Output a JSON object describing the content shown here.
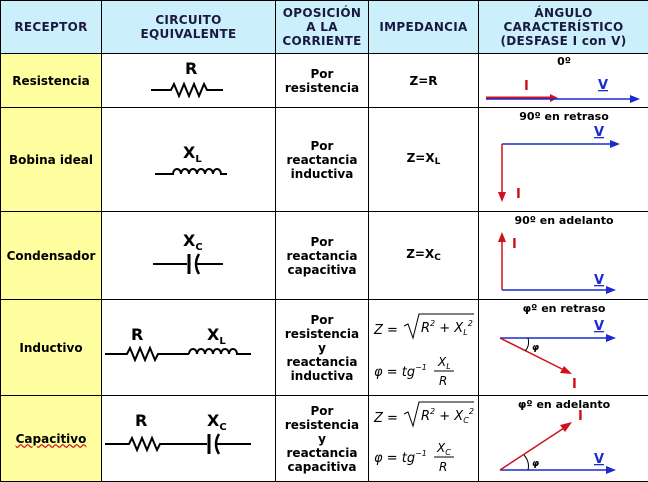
{
  "headers": {
    "receptor": "RECEPTOR",
    "circuito": "CIRCUITO\nEQUIVALENTE",
    "oposicion": "OPOSICIÓN\nA LA\nCORRIENTE",
    "impedancia": "IMPEDANCIA",
    "angulo": "ÁNGULO\nCARACTERÍSTICO\n(DESFASE I con V)"
  },
  "rows": [
    {
      "receptor": "Resistencia",
      "components": [
        "R"
      ],
      "oposicion": "Por\nresistencia",
      "impedancia": "Z=R",
      "angle_title": "0º"
    },
    {
      "receptor": "Bobina ideal",
      "components": [
        "XL"
      ],
      "oposicion": "Por\nreactancia\ninductiva",
      "impedancia": "Z=XL",
      "angle_title": "90º en retraso"
    },
    {
      "receptor": "Condensador",
      "components": [
        "XC"
      ],
      "oposicion": "Por\nreactancia\ncapacitiva",
      "impedancia": "Z=XC",
      "angle_title": "90º en adelanto"
    },
    {
      "receptor": "Inductivo",
      "components": [
        "R",
        "XL"
      ],
      "oposicion": "Por\nresistencia\ny\nreactancia\ninductiva",
      "impedancia_z": "Z = √(R² + XL²)",
      "impedancia_phi": "φ = tg⁻¹ XL/R",
      "angle_title": "φº en retraso"
    },
    {
      "receptor": "Capacitivo",
      "components": [
        "R",
        "XC"
      ],
      "oposicion": "Por\nresistencia\ny\nreactancia\ncapacitiva",
      "impedancia_z": "Z = √(R² + XC²)",
      "impedancia_phi": "φ = tg⁻¹ XC/R",
      "angle_title": "φº en adelanto"
    }
  ],
  "phasor_labels": {
    "current": "I",
    "voltage": "V",
    "angle": "φ"
  },
  "colors": {
    "header_bg": "#ccf0fb",
    "receptor_bg": "#ffffa0",
    "voltage": "#1a2bd0",
    "current": "#d0101a"
  }
}
